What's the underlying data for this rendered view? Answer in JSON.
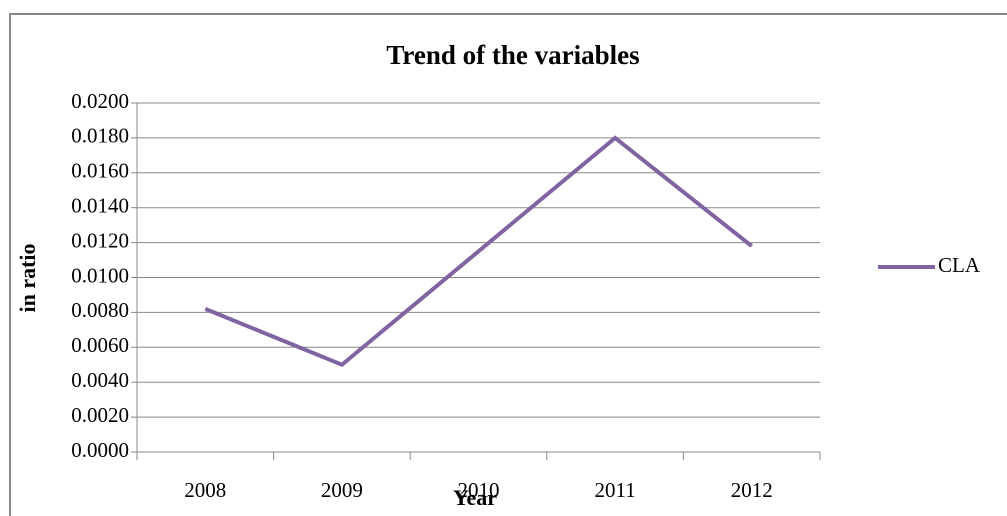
{
  "chart_data": {
    "type": "line",
    "title": "Trend of the variables",
    "x_label": "Year",
    "y_label": "in ratio",
    "categories": [
      "2008",
      "2009",
      "2010",
      "2011",
      "2012"
    ],
    "series": [
      {
        "name": "CLA",
        "color": "#8064a2",
        "values": [
          0.0082,
          0.005,
          0.0115,
          0.018,
          0.0118
        ]
      }
    ],
    "ylim": [
      0,
      0.02
    ],
    "yticks": [
      {
        "value": 0,
        "label": "0.0000"
      },
      {
        "value": 0.002,
        "label": "0.0020"
      },
      {
        "value": 0.004,
        "label": "0.0040"
      },
      {
        "value": 0.006,
        "label": "0.0060"
      },
      {
        "value": 0.008,
        "label": "0.0080"
      },
      {
        "value": 0.01,
        "label": "0.0100"
      },
      {
        "value": 0.012,
        "label": "0.0120"
      },
      {
        "value": 0.014,
        "label": "0.0140"
      },
      {
        "value": 0.016,
        "label": "0.0160"
      },
      {
        "value": 0.018,
        "label": "0.0180"
      },
      {
        "value": 0.02,
        "label": "0.0200"
      }
    ],
    "grid": true,
    "legend": "right"
  }
}
